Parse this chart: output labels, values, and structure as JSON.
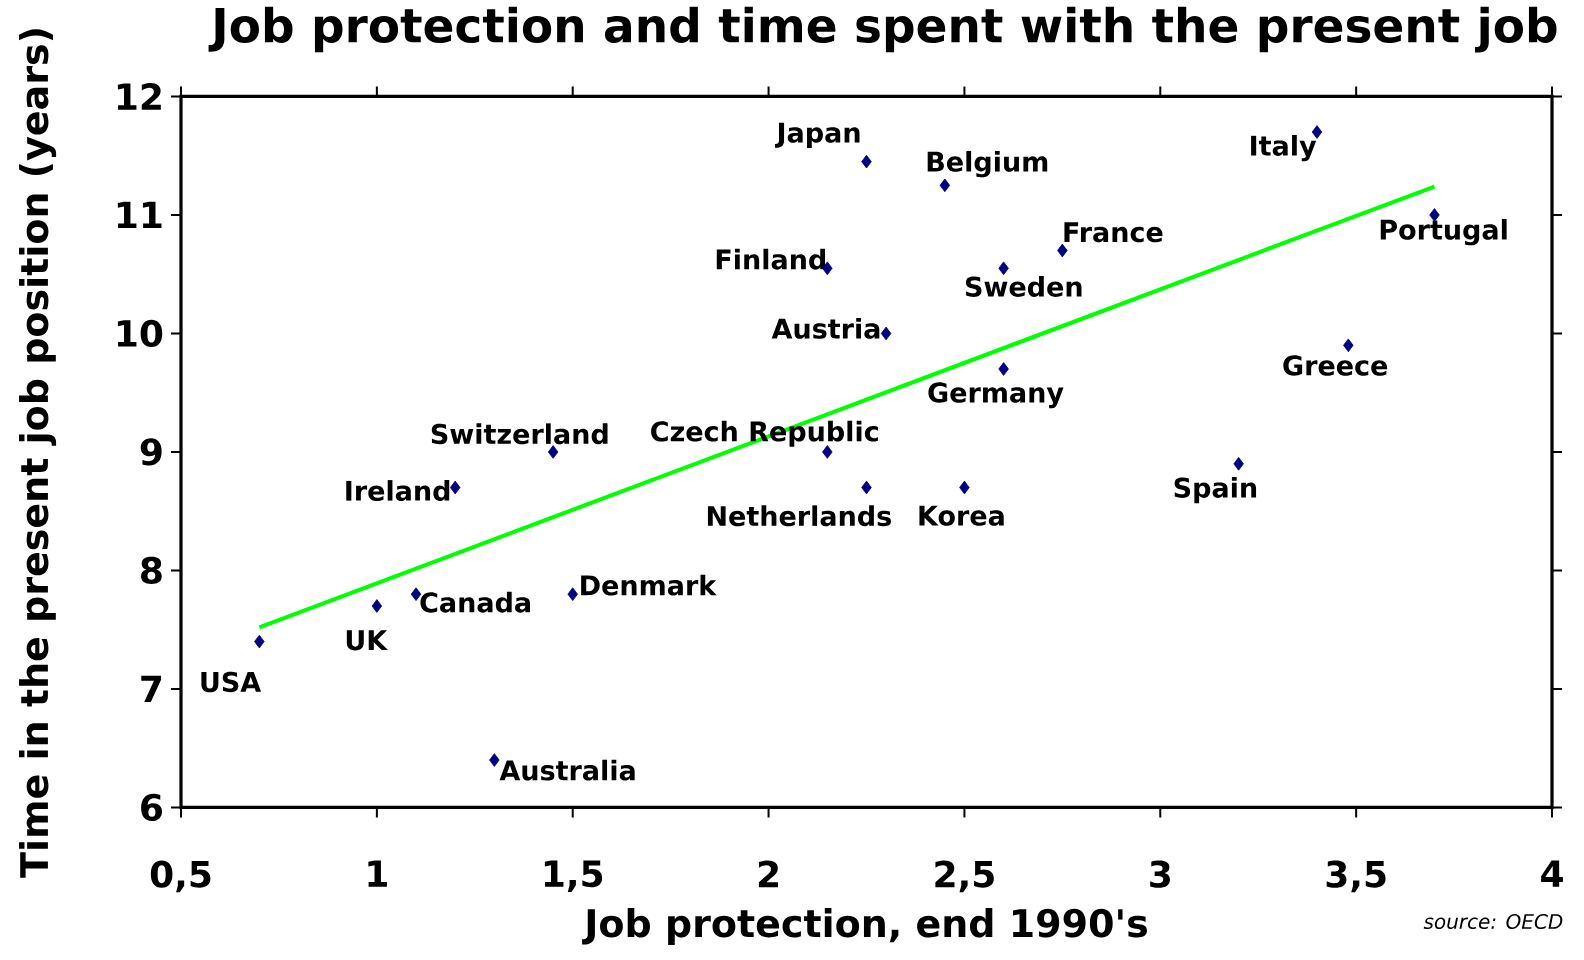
{
  "chart_data": {
    "type": "scatter",
    "title": "Job protection and time spent with the present job",
    "xlabel": "Job protection, end 1990's",
    "ylabel": "Time in the present job position (years)",
    "xlim": [
      0.5,
      4
    ],
    "ylim": [
      6,
      12
    ],
    "xticks": [
      {
        "value": 0.5,
        "label": "0,5"
      },
      1,
      {
        "value": 1.5,
        "label": "1,5"
      },
      2,
      {
        "value": 2.5,
        "label": "2,5"
      },
      3,
      {
        "value": 3.5,
        "label": "3,5"
      },
      4
    ],
    "yticks": [
      6,
      7,
      8,
      9,
      10,
      11,
      12
    ],
    "grid": false,
    "series": [
      {
        "marker": "diamond",
        "color": "#000080",
        "x": [
          0.7,
          1.0,
          1.1,
          1.2,
          1.3,
          1.45,
          1.5,
          2.15,
          2.15,
          2.25,
          2.25,
          2.3,
          2.45,
          2.5,
          2.6,
          2.6,
          2.75,
          3.2,
          3.4,
          3.48,
          3.7
        ],
        "values": [
          7.4,
          7.7,
          7.8,
          8.7,
          6.4,
          9.0,
          7.8,
          10.55,
          9.0,
          11.45,
          8.7,
          10.0,
          11.25,
          8.7,
          10.55,
          9.7,
          10.7,
          8.9,
          11.7,
          9.9,
          11.0
        ]
      },
      {
        "type": "line",
        "color": "#00ff00",
        "x": [
          0.7,
          3.7
        ],
        "values": [
          7.52,
          11.24
        ]
      }
    ],
    "annotations": [
      {
        "text": "USA",
        "x": 0.7,
        "y": 7.4
      },
      {
        "text": "UK",
        "x": 1.0,
        "y": 7.7
      },
      {
        "text": "Canada",
        "x": 1.1,
        "y": 7.8
      },
      {
        "text": "Ireland",
        "x": 1.2,
        "y": 8.7
      },
      {
        "text": "Australia",
        "x": 1.3,
        "y": 6.4
      },
      {
        "text": "Switzerland",
        "x": 1.45,
        "y": 9.0
      },
      {
        "text": "Denmark",
        "x": 1.5,
        "y": 7.8
      },
      {
        "text": "Finland",
        "x": 2.15,
        "y": 10.55
      },
      {
        "text": "Czech Republic",
        "x": 2.15,
        "y": 9.0
      },
      {
        "text": "Japan",
        "x": 2.25,
        "y": 11.45
      },
      {
        "text": "Netherlands",
        "x": 2.25,
        "y": 8.7
      },
      {
        "text": "Austria",
        "x": 2.3,
        "y": 10.0
      },
      {
        "text": "Belgium",
        "x": 2.45,
        "y": 11.25
      },
      {
        "text": "Korea",
        "x": 2.5,
        "y": 8.7
      },
      {
        "text": "Sweden",
        "x": 2.6,
        "y": 10.55
      },
      {
        "text": "Germany",
        "x": 2.6,
        "y": 9.7
      },
      {
        "text": "France",
        "x": 2.75,
        "y": 10.7
      },
      {
        "text": "Spain",
        "x": 3.2,
        "y": 8.9
      },
      {
        "text": "Italy",
        "x": 3.4,
        "y": 11.7
      },
      {
        "text": "Greece",
        "x": 3.48,
        "y": 9.9
      },
      {
        "text": "Portugal",
        "x": 3.7,
        "y": 11.0
      },
      "source: OECD"
    ]
  }
}
